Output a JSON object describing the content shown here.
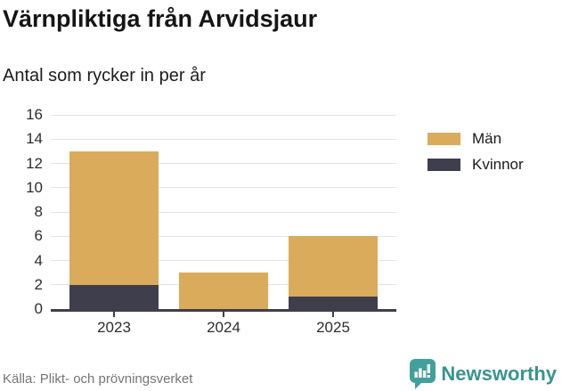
{
  "header": {
    "title": "Värnpliktiga från Arvidsjaur",
    "subtitle": "Antal som rycker in per år"
  },
  "chart_data": {
    "type": "bar",
    "stacked": true,
    "categories": [
      "2023",
      "2024",
      "2025"
    ],
    "series": [
      {
        "name": "Män",
        "color": "#d9ab5a",
        "values": [
          11,
          3,
          5
        ]
      },
      {
        "name": "Kvinnor",
        "color": "#3f3e4d",
        "values": [
          2,
          0,
          1
        ]
      }
    ],
    "stack_totals": [
      13,
      3,
      6
    ],
    "ylim": [
      0,
      16
    ],
    "yticks": [
      0,
      2,
      4,
      6,
      8,
      10,
      12,
      14,
      16
    ],
    "grid": true,
    "legend_position": "right-top",
    "xlabel": "",
    "ylabel": ""
  },
  "colors": {
    "man": "#d9ab5a",
    "kvinnor": "#3f3e4d",
    "gridline": "#e3e3e3",
    "axis": "#3f3e4d",
    "tick_text": "#2d2d2d",
    "brand_teal": "#399490"
  },
  "footer": {
    "source": "Källa: Plikt- och prövningsverket",
    "brand": "Newsworthy"
  }
}
